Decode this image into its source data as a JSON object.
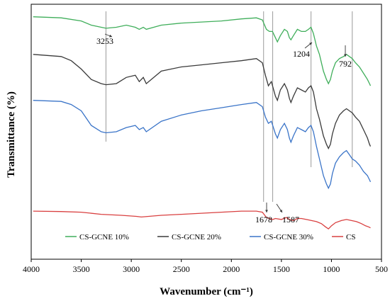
{
  "chart_data": {
    "type": "line",
    "title": "",
    "xlabel": "Wavenumber (cm⁻¹)",
    "ylabel": "Transmittance (%)",
    "xlim": [
      4000,
      500
    ],
    "x_ticks": [
      "4000",
      "3500",
      "3000",
      "2500",
      "2000",
      "1500",
      "1000",
      "500"
    ],
    "y_ticks_shown": false,
    "grid": false,
    "legend_position": "bottom",
    "series": [
      {
        "name": "CS-GCNE 10%",
        "color": "#3fae5a",
        "points": [
          [
            3980,
            88
          ],
          [
            3700,
            87.5
          ],
          [
            3500,
            86
          ],
          [
            3400,
            84
          ],
          [
            3300,
            83
          ],
          [
            3253,
            82.5
          ],
          [
            3150,
            83
          ],
          [
            3050,
            84
          ],
          [
            2960,
            83
          ],
          [
            2920,
            82
          ],
          [
            2880,
            83
          ],
          [
            2850,
            82
          ],
          [
            2700,
            84
          ],
          [
            2500,
            85
          ],
          [
            2300,
            85.5
          ],
          [
            2100,
            86
          ],
          [
            1900,
            87
          ],
          [
            1750,
            87.5
          ],
          [
            1690,
            86.5
          ],
          [
            1650,
            82
          ],
          [
            1620,
            81
          ],
          [
            1590,
            81
          ],
          [
            1560,
            78
          ],
          [
            1540,
            76
          ],
          [
            1510,
            79
          ],
          [
            1470,
            82
          ],
          [
            1440,
            81
          ],
          [
            1420,
            78
          ],
          [
            1405,
            77
          ],
          [
            1380,
            79
          ],
          [
            1340,
            82
          ],
          [
            1300,
            81
          ],
          [
            1260,
            81
          ],
          [
            1230,
            82
          ],
          [
            1204,
            83
          ],
          [
            1180,
            80
          ],
          [
            1150,
            74
          ],
          [
            1120,
            70
          ],
          [
            1080,
            62
          ],
          [
            1050,
            58
          ],
          [
            1030,
            56
          ],
          [
            1010,
            58
          ],
          [
            990,
            62
          ],
          [
            960,
            66
          ],
          [
            920,
            68
          ],
          [
            880,
            69
          ],
          [
            850,
            70
          ],
          [
            820,
            69
          ],
          [
            792,
            68
          ],
          [
            760,
            66
          ],
          [
            720,
            64
          ],
          [
            680,
            61
          ],
          [
            640,
            58
          ],
          [
            620,
            56
          ],
          [
            610,
            55
          ]
        ]
      },
      {
        "name": "CS-GCNE 20%",
        "color": "#3a3a3a",
        "points": [
          [
            3980,
            70
          ],
          [
            3700,
            69
          ],
          [
            3600,
            67
          ],
          [
            3500,
            63
          ],
          [
            3400,
            58
          ],
          [
            3300,
            56
          ],
          [
            3253,
            55.5
          ],
          [
            3150,
            56
          ],
          [
            3050,
            59
          ],
          [
            2960,
            60
          ],
          [
            2920,
            57
          ],
          [
            2880,
            59
          ],
          [
            2850,
            56
          ],
          [
            2700,
            62
          ],
          [
            2500,
            64
          ],
          [
            2300,
            65
          ],
          [
            2100,
            66
          ],
          [
            1900,
            67
          ],
          [
            1750,
            68
          ],
          [
            1690,
            66
          ],
          [
            1660,
            60
          ],
          [
            1630,
            55
          ],
          [
            1600,
            57
          ],
          [
            1560,
            50
          ],
          [
            1540,
            48
          ],
          [
            1510,
            53
          ],
          [
            1470,
            56
          ],
          [
            1440,
            53
          ],
          [
            1420,
            49
          ],
          [
            1405,
            47
          ],
          [
            1380,
            50
          ],
          [
            1340,
            54
          ],
          [
            1300,
            53
          ],
          [
            1260,
            52
          ],
          [
            1230,
            54
          ],
          [
            1204,
            55
          ],
          [
            1180,
            52
          ],
          [
            1150,
            44
          ],
          [
            1120,
            39
          ],
          [
            1080,
            31
          ],
          [
            1050,
            27
          ],
          [
            1030,
            25
          ],
          [
            1010,
            27
          ],
          [
            990,
            32
          ],
          [
            960,
            37
          ],
          [
            920,
            41
          ],
          [
            880,
            43
          ],
          [
            850,
            44
          ],
          [
            820,
            43
          ],
          [
            792,
            42
          ],
          [
            760,
            40
          ],
          [
            720,
            38
          ],
          [
            680,
            34
          ],
          [
            640,
            30
          ],
          [
            620,
            27
          ],
          [
            610,
            26
          ]
        ]
      },
      {
        "name": "CS-GCNE 30%",
        "color": "#3a74c8",
        "points": [
          [
            3980,
            48
          ],
          [
            3700,
            47.5
          ],
          [
            3600,
            46
          ],
          [
            3500,
            43
          ],
          [
            3400,
            36
          ],
          [
            3300,
            33
          ],
          [
            3253,
            32.5
          ],
          [
            3150,
            33
          ],
          [
            3050,
            35
          ],
          [
            2960,
            36
          ],
          [
            2920,
            34
          ],
          [
            2880,
            35
          ],
          [
            2850,
            33
          ],
          [
            2700,
            38
          ],
          [
            2500,
            41
          ],
          [
            2300,
            43
          ],
          [
            2100,
            44.5
          ],
          [
            1900,
            46
          ],
          [
            1750,
            47
          ],
          [
            1690,
            45
          ],
          [
            1660,
            40
          ],
          [
            1630,
            37
          ],
          [
            1600,
            38
          ],
          [
            1560,
            32
          ],
          [
            1540,
            30
          ],
          [
            1510,
            34
          ],
          [
            1470,
            37
          ],
          [
            1440,
            34
          ],
          [
            1420,
            30
          ],
          [
            1405,
            28
          ],
          [
            1380,
            31
          ],
          [
            1340,
            35
          ],
          [
            1300,
            34
          ],
          [
            1260,
            33
          ],
          [
            1230,
            35
          ],
          [
            1204,
            36
          ],
          [
            1180,
            33
          ],
          [
            1150,
            26
          ],
          [
            1120,
            20
          ],
          [
            1080,
            12
          ],
          [
            1050,
            8
          ],
          [
            1030,
            6
          ],
          [
            1010,
            8
          ],
          [
            990,
            13
          ],
          [
            960,
            18
          ],
          [
            920,
            21
          ],
          [
            880,
            23
          ],
          [
            850,
            24
          ],
          [
            820,
            22
          ],
          [
            792,
            20
          ],
          [
            760,
            19
          ],
          [
            720,
            17
          ],
          [
            680,
            14
          ],
          [
            640,
            12
          ],
          [
            620,
            10
          ],
          [
            610,
            9
          ]
        ]
      },
      {
        "name": "CS",
        "color": "#d94040",
        "points": [
          [
            3980,
            -5
          ],
          [
            3700,
            -5.2
          ],
          [
            3500,
            -5.5
          ],
          [
            3300,
            -6.5
          ],
          [
            3100,
            -7
          ],
          [
            2950,
            -7.5
          ],
          [
            2900,
            -7.8
          ],
          [
            2700,
            -7
          ],
          [
            2500,
            -6.5
          ],
          [
            2300,
            -6
          ],
          [
            2100,
            -5.5
          ],
          [
            1900,
            -5
          ],
          [
            1750,
            -5
          ],
          [
            1690,
            -5.5
          ],
          [
            1650,
            -8
          ],
          [
            1620,
            -8.5
          ],
          [
            1587,
            -9
          ],
          [
            1560,
            -8.5
          ],
          [
            1500,
            -9
          ],
          [
            1450,
            -8
          ],
          [
            1420,
            -9
          ],
          [
            1380,
            -9.5
          ],
          [
            1340,
            -8.5
          ],
          [
            1300,
            -8.5
          ],
          [
            1250,
            -9
          ],
          [
            1200,
            -9.5
          ],
          [
            1150,
            -10
          ],
          [
            1100,
            -11
          ],
          [
            1060,
            -12.5
          ],
          [
            1030,
            -13.5
          ],
          [
            1000,
            -12
          ],
          [
            960,
            -10.5
          ],
          [
            900,
            -9.5
          ],
          [
            850,
            -9
          ],
          [
            800,
            -9.5
          ],
          [
            750,
            -10
          ],
          [
            700,
            -11
          ],
          [
            660,
            -12
          ],
          [
            630,
            -12.5
          ],
          [
            610,
            -13
          ]
        ]
      }
    ],
    "reference_lines": [
      3253,
      1678,
      1587,
      1204,
      792
    ],
    "annotations": [
      {
        "label": "3253",
        "x": 3253
      },
      {
        "label": "1204",
        "x": 1204
      },
      {
        "label": "792",
        "x": 792
      },
      {
        "label": "1678",
        "x": 1678
      },
      {
        "label": "1587",
        "x": 1587
      }
    ]
  }
}
